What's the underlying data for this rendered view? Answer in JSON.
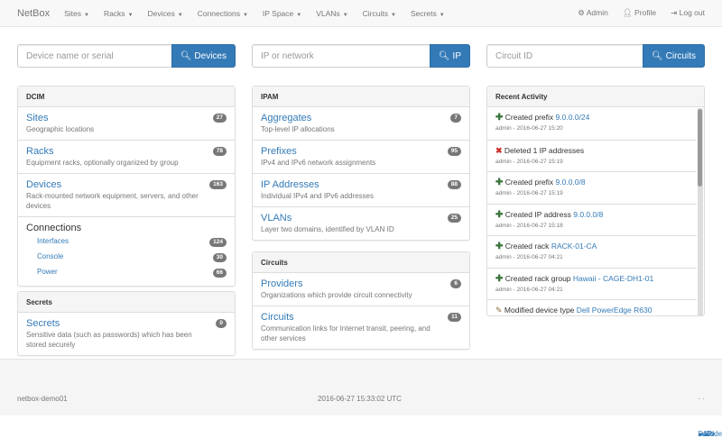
{
  "nav": {
    "brand": "NetBox",
    "menus": [
      "Sites",
      "Racks",
      "Devices",
      "Connections",
      "IP Space",
      "VLANs",
      "Circuits",
      "Secrets"
    ],
    "admin": "Admin",
    "profile": "Profile",
    "logout": "Log out"
  },
  "search": [
    {
      "placeholder": "Device name or serial",
      "button": "Devices"
    },
    {
      "placeholder": "IP or network",
      "button": "IP"
    },
    {
      "placeholder": "Circuit ID",
      "button": "Circuits"
    }
  ],
  "dcim": {
    "title": "DCIM",
    "items": [
      {
        "label": "Sites",
        "desc": "Geographic locations",
        "count": "27"
      },
      {
        "label": "Racks",
        "desc": "Equipment racks, optionally organized by group",
        "count": "78"
      },
      {
        "label": "Devices",
        "desc": "Rack-mounted network equipment, servers, and other devices",
        "count": "163"
      }
    ],
    "connections": {
      "label": "Connections",
      "items": [
        {
          "label": "Interfaces",
          "count": "124"
        },
        {
          "label": "Console",
          "count": "30"
        },
        {
          "label": "Power",
          "count": "66"
        }
      ]
    }
  },
  "secrets": {
    "title": "Secrets",
    "items": [
      {
        "label": "Secrets",
        "desc": "Sensitive data (such as passwords) which has been stored securely",
        "count": "0"
      }
    ]
  },
  "ipam": {
    "title": "IPAM",
    "items": [
      {
        "label": "Aggregates",
        "desc": "Top-level IP allocations",
        "count": "7"
      },
      {
        "label": "Prefixes",
        "desc": "IPv4 and IPv6 network assignments",
        "count": "95"
      },
      {
        "label": "IP Addresses",
        "desc": "Individual IPv4 and IPv6 addresses",
        "count": "88"
      },
      {
        "label": "VLANs",
        "desc": "Layer two domains, identified by VLAN ID",
        "count": "25"
      }
    ]
  },
  "circuits": {
    "title": "Circuits",
    "items": [
      {
        "label": "Providers",
        "desc": "Organizations which provide circuit connectivity",
        "count": "6"
      },
      {
        "label": "Circuits",
        "desc": "Communication links for Internet transit, peering, and other services",
        "count": "11"
      }
    ]
  },
  "activity": {
    "title": "Recent Activity",
    "items": [
      {
        "icon": "plus",
        "action": "Created prefix",
        "link": "9.0.0.0/24",
        "meta": "admin - 2016-06-27 15:20"
      },
      {
        "icon": "remove",
        "action": "Deleted 1 IP addresses",
        "link": "",
        "meta": "admin - 2016-06-27 15:19"
      },
      {
        "icon": "plus",
        "action": "Created prefix",
        "link": "9.0.0.0/8",
        "meta": "admin - 2016-06-27 15:19"
      },
      {
        "icon": "plus",
        "action": "Created IP address",
        "link": "9.0.0.0/8",
        "meta": "admin - 2016-06-27 15:18"
      },
      {
        "icon": "plus",
        "action": "Created rack",
        "link": "RACK-01-CA",
        "meta": "admin - 2016-06-27 04:21"
      },
      {
        "icon": "plus",
        "action": "Created rack group",
        "link": "Hawaii - CAGE-DH1-01",
        "meta": "admin - 2016-06-27 04:21"
      },
      {
        "icon": "pencil",
        "action": "Modified device type",
        "link": "Dell PowerEdge R630",
        "meta": "admin - 2016-06-27 04:21"
      }
    ]
  },
  "footer": {
    "hostname": "netbox-demo01",
    "time": "2016-06-27 15:33:02 UTC",
    "docs": "Docs",
    "api": "API",
    "code": "Code",
    "sep": "·"
  }
}
